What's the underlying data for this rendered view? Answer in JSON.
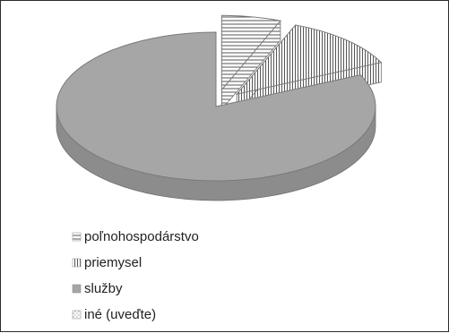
{
  "chart_data": {
    "type": "pie",
    "title": "",
    "categories": [
      "poľnohospodárstvo",
      "priemysel",
      "služby",
      "iné (uveďte)"
    ],
    "values": [
      6,
      12,
      82,
      0
    ],
    "explode": [
      true,
      true,
      false,
      false
    ],
    "legend_position": "bottom-left",
    "colors": {
      "poľnohospodárstvo": "#ffffff",
      "priemysel": "#ffffff",
      "služby": "#a6a6a6",
      "iné (uveďte)": "#ffffff"
    },
    "patterns": {
      "poľnohospodárstvo": "horizontal-lines",
      "priemysel": "vertical-lines",
      "služby": "solid",
      "iné (uveďte)": "dotted"
    },
    "style": "3d"
  }
}
